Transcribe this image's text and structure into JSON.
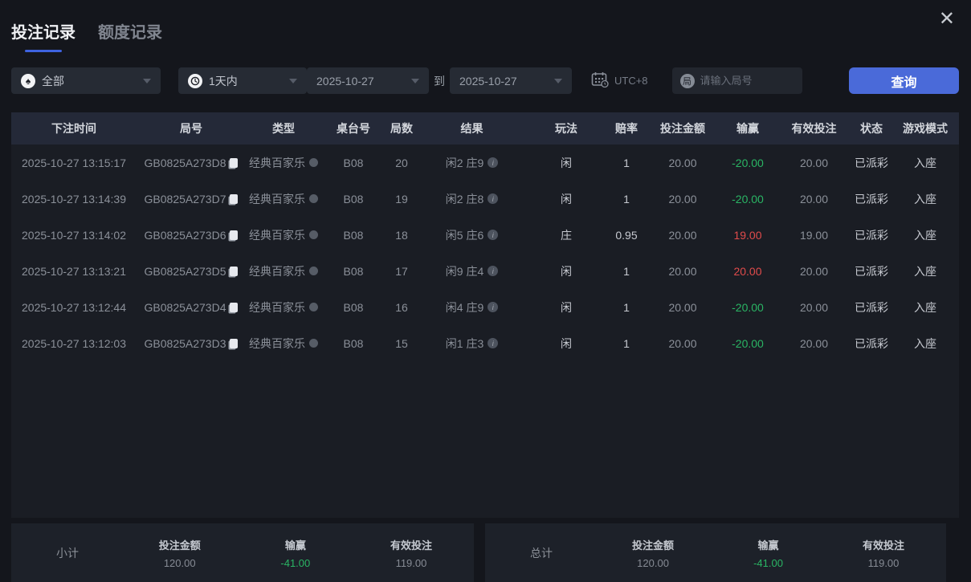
{
  "tabs": [
    {
      "label": "投注记录",
      "active": true
    },
    {
      "label": "额度记录",
      "active": false
    }
  ],
  "close_label": "✕",
  "filters": {
    "game_type": {
      "value": "全部",
      "icon": "spade"
    },
    "time_range": {
      "value": "1天内",
      "icon": "clock"
    },
    "date_from": "2025-10-27",
    "to_label": "到",
    "date_to": "2025-10-27",
    "timezone": "UTC+8",
    "round_placeholder": "请输入局号",
    "round_badge": "局",
    "search_label": "查询"
  },
  "table": {
    "headers": [
      "下注时间",
      "局号",
      "类型",
      "桌台号",
      "局数",
      "结果",
      "玩法",
      "赔率",
      "投注金额",
      "输赢",
      "有效投注",
      "状态",
      "游戏模式"
    ],
    "rows": [
      {
        "time": "2025-10-27 13:15:17",
        "round_id": "GB0825A273D8",
        "type": "经典百家乐",
        "table_no": "B08",
        "round": "20",
        "result": "闲2 庄9",
        "play": "闲",
        "odds": "1",
        "bet": "20.00",
        "win_loss": "-20.00",
        "valid_bet": "20.00",
        "status": "已派彩",
        "mode": "入座"
      },
      {
        "time": "2025-10-27 13:14:39",
        "round_id": "GB0825A273D7",
        "type": "经典百家乐",
        "table_no": "B08",
        "round": "19",
        "result": "闲2 庄8",
        "play": "闲",
        "odds": "1",
        "bet": "20.00",
        "win_loss": "-20.00",
        "valid_bet": "20.00",
        "status": "已派彩",
        "mode": "入座"
      },
      {
        "time": "2025-10-27 13:14:02",
        "round_id": "GB0825A273D6",
        "type": "经典百家乐",
        "table_no": "B08",
        "round": "18",
        "result": "闲5 庄6",
        "play": "庄",
        "odds": "0.95",
        "bet": "20.00",
        "win_loss": "19.00",
        "valid_bet": "19.00",
        "status": "已派彩",
        "mode": "入座"
      },
      {
        "time": "2025-10-27 13:13:21",
        "round_id": "GB0825A273D5",
        "type": "经典百家乐",
        "table_no": "B08",
        "round": "17",
        "result": "闲9 庄4",
        "play": "闲",
        "odds": "1",
        "bet": "20.00",
        "win_loss": "20.00",
        "valid_bet": "20.00",
        "status": "已派彩",
        "mode": "入座"
      },
      {
        "time": "2025-10-27 13:12:44",
        "round_id": "GB0825A273D4",
        "type": "经典百家乐",
        "table_no": "B08",
        "round": "16",
        "result": "闲4 庄9",
        "play": "闲",
        "odds": "1",
        "bet": "20.00",
        "win_loss": "-20.00",
        "valid_bet": "20.00",
        "status": "已派彩",
        "mode": "入座"
      },
      {
        "time": "2025-10-27 13:12:03",
        "round_id": "GB0825A273D3",
        "type": "经典百家乐",
        "table_no": "B08",
        "round": "15",
        "result": "闲1 庄3",
        "play": "闲",
        "odds": "1",
        "bet": "20.00",
        "win_loss": "-20.00",
        "valid_bet": "20.00",
        "status": "已派彩",
        "mode": "入座"
      }
    ]
  },
  "summary": {
    "subtotal": {
      "label": "小计",
      "bet_label": "投注金额",
      "bet": "120.00",
      "win_label": "输赢",
      "win": "-41.00",
      "valid_label": "有效投注",
      "valid": "119.00"
    },
    "total": {
      "label": "总计",
      "bet_label": "投注金额",
      "bet": "120.00",
      "win_label": "输赢",
      "win": "-41.00",
      "valid_label": "有效投注",
      "valid": "119.00"
    }
  },
  "colors": {
    "accent_blue": "#4a6ad9",
    "tab_underline": "#3e63e0",
    "loss_green": "#2ab564",
    "win_red": "#e04b4b"
  }
}
